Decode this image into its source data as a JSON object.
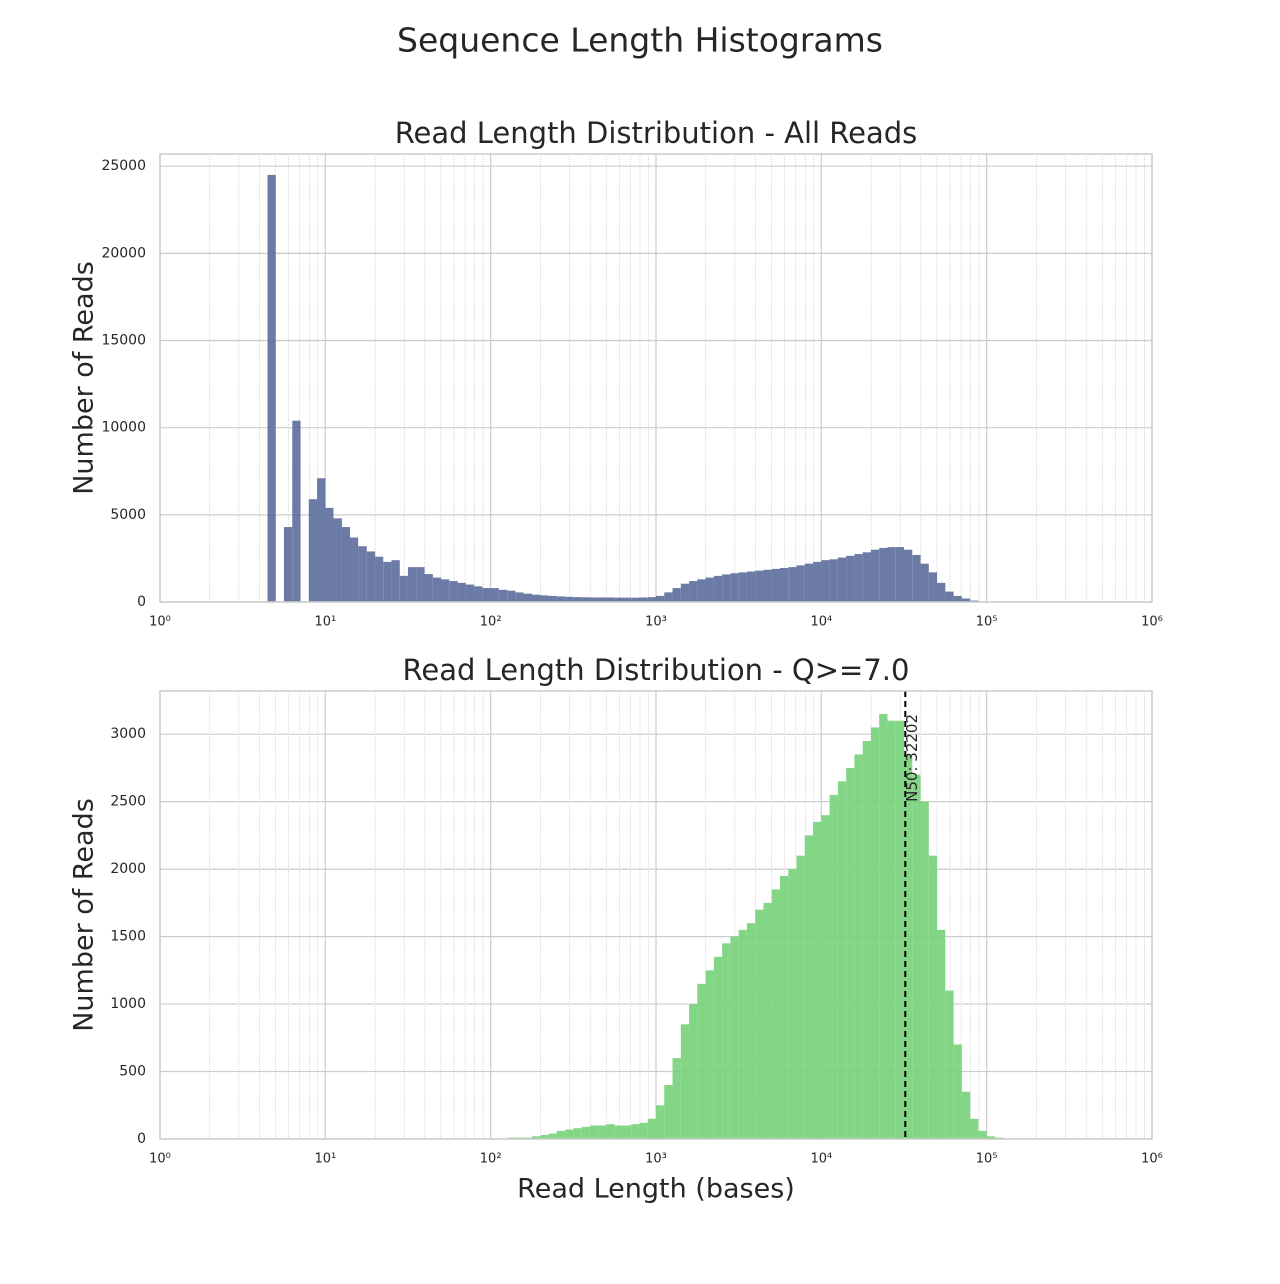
{
  "title": "Sequence Length Histograms",
  "chart_data": [
    {
      "type": "histogram",
      "title": "Read Length Distribution - All Reads",
      "ylabel": "Number of Reads",
      "log_x": true,
      "grid": true,
      "minor_grid": true,
      "color": "#5b6d9c",
      "xlim": [
        1,
        1000000
      ],
      "xticks": [
        {
          "value": 1,
          "label": "10⁰"
        },
        {
          "value": 10,
          "label": "10¹"
        },
        {
          "value": 100,
          "label": "10²"
        },
        {
          "value": 1000,
          "label": "10³"
        },
        {
          "value": 10000,
          "label": "10⁴"
        },
        {
          "value": 100000,
          "label": "10⁵"
        },
        {
          "value": 1000000,
          "label": "10⁶"
        }
      ],
      "ylim": [
        0,
        25700
      ],
      "yticks": [
        0,
        5000,
        10000,
        15000,
        20000,
        25000
      ],
      "bins": [
        4.47,
        5.01,
        5.62,
        6.31,
        7.08,
        7.94,
        8.91,
        10,
        11.2,
        12.6,
        14.1,
        15.8,
        17.8,
        20,
        22.4,
        25.1,
        28.2,
        31.6,
        35.5,
        39.8,
        44.7,
        50.1,
        56.2,
        63.1,
        70.8,
        79.4,
        89.1,
        100,
        112,
        126,
        141,
        158,
        178,
        200,
        224,
        251,
        282,
        316,
        355,
        398,
        447,
        501,
        562,
        631,
        708,
        794,
        891,
        1000,
        1122,
        1259,
        1413,
        1585,
        1778,
        1995,
        2239,
        2512,
        2818,
        3162,
        3548,
        3981,
        4467,
        5012,
        5623,
        6310,
        7079,
        7943,
        8913,
        10000,
        11220,
        12589,
        14125,
        15849,
        17783,
        19953,
        22387,
        25119,
        28184,
        31623,
        35481,
        39811,
        44668,
        50119,
        56234,
        63096,
        70795,
        79433,
        89125,
        100000,
        112202,
        125893,
        141254,
        158489
      ],
      "values": [
        24500,
        0,
        4300,
        10400,
        0,
        5900,
        7100,
        5400,
        4800,
        4300,
        3700,
        3200,
        2900,
        2600,
        2300,
        2400,
        1500,
        2000,
        2000,
        1600,
        1400,
        1300,
        1200,
        1100,
        1000,
        900,
        800,
        800,
        700,
        650,
        550,
        480,
        420,
        380,
        350,
        320,
        300,
        280,
        270,
        260,
        260,
        260,
        250,
        250,
        250,
        260,
        280,
        350,
        550,
        800,
        1050,
        1200,
        1300,
        1400,
        1500,
        1580,
        1650,
        1700,
        1750,
        1800,
        1850,
        1900,
        1950,
        2000,
        2100,
        2200,
        2300,
        2400,
        2450,
        2550,
        2650,
        2750,
        2850,
        3000,
        3100,
        3150,
        3150,
        3000,
        2700,
        2200,
        1700,
        1100,
        600,
        350,
        200,
        80,
        30,
        10,
        5,
        0,
        0
      ]
    },
    {
      "type": "histogram",
      "title": "Read Length Distribution - Q>=7.0",
      "ylabel": "Number of Reads",
      "xlabel": "Read Length (bases)",
      "log_x": true,
      "grid": true,
      "minor_grid": true,
      "color": "#77d17a",
      "xlim": [
        1,
        1000000
      ],
      "xticks": [
        {
          "value": 1,
          "label": "10⁰"
        },
        {
          "value": 10,
          "label": "10¹"
        },
        {
          "value": 100,
          "label": "10²"
        },
        {
          "value": 1000,
          "label": "10³"
        },
        {
          "value": 10000,
          "label": "10⁴"
        },
        {
          "value": 100000,
          "label": "10⁵"
        },
        {
          "value": 1000000,
          "label": "10⁶"
        }
      ],
      "ylim": [
        0,
        3320
      ],
      "yticks": [
        0,
        500,
        1000,
        1500,
        2000,
        2500,
        3000
      ],
      "bins": [
        4.47,
        5.01,
        5.62,
        6.31,
        7.08,
        7.94,
        8.91,
        10,
        11.2,
        12.6,
        14.1,
        15.8,
        17.8,
        20,
        22.4,
        25.1,
        28.2,
        31.6,
        35.5,
        39.8,
        44.7,
        50.1,
        56.2,
        63.1,
        70.8,
        79.4,
        89.1,
        100,
        112,
        126,
        141,
        158,
        178,
        200,
        224,
        251,
        282,
        316,
        355,
        398,
        447,
        501,
        562,
        631,
        708,
        794,
        891,
        1000,
        1122,
        1259,
        1413,
        1585,
        1778,
        1995,
        2239,
        2512,
        2818,
        3162,
        3548,
        3981,
        4467,
        5012,
        5623,
        6310,
        7079,
        7943,
        8913,
        10000,
        11220,
        12589,
        14125,
        15849,
        17783,
        19953,
        22387,
        25119,
        28184,
        31623,
        35481,
        39811,
        44668,
        50119,
        56234,
        63096,
        70795,
        79433,
        89125,
        100000,
        112202,
        125893,
        141254,
        158489
      ],
      "values": [
        0,
        0,
        0,
        0,
        0,
        0,
        0,
        0,
        0,
        0,
        0,
        0,
        0,
        0,
        0,
        0,
        0,
        0,
        0,
        0,
        0,
        0,
        0,
        0,
        0,
        0,
        0,
        0,
        0,
        10,
        10,
        10,
        20,
        30,
        40,
        60,
        70,
        80,
        90,
        100,
        100,
        110,
        100,
        100,
        110,
        120,
        150,
        250,
        400,
        600,
        850,
        1000,
        1150,
        1250,
        1350,
        1450,
        1500,
        1550,
        1600,
        1700,
        1750,
        1850,
        1950,
        2000,
        2100,
        2250,
        2350,
        2400,
        2550,
        2650,
        2750,
        2850,
        2950,
        3050,
        3150,
        3100,
        3100,
        2850,
        2700,
        2500,
        2100,
        1550,
        1100,
        700,
        350,
        150,
        60,
        20,
        10,
        0,
        0
      ],
      "annotation": {
        "value": 32202,
        "label": "N50: 32202"
      }
    }
  ]
}
